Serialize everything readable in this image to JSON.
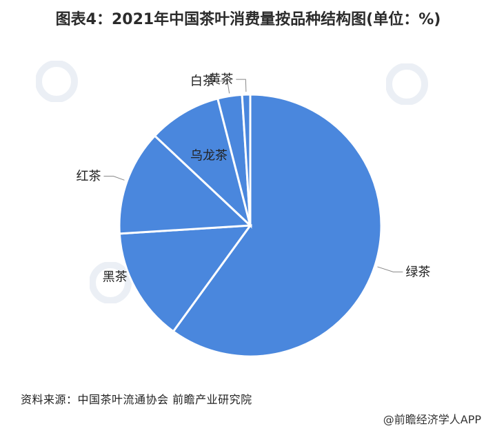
{
  "title": "图表4：2021年中国茶叶消费量按品种结构图(单位：%)",
  "source": "资料来源：中国茶叶流通协会 前瞻产业研究院",
  "watermark": "@前瞻经济学人APP",
  "colors": {
    "slice_fill": "#4a87dd",
    "slice_edge": "#ffffff",
    "label": "#222222",
    "leader": "#888888"
  },
  "chart_data": {
    "type": "pie",
    "categories": [
      "绿茶",
      "黑茶",
      "红茶",
      "乌龙茶",
      "白茶",
      "黄茶"
    ],
    "values": [
      60.0,
      14.0,
      13.0,
      9.0,
      3.0,
      1.0
    ]
  }
}
